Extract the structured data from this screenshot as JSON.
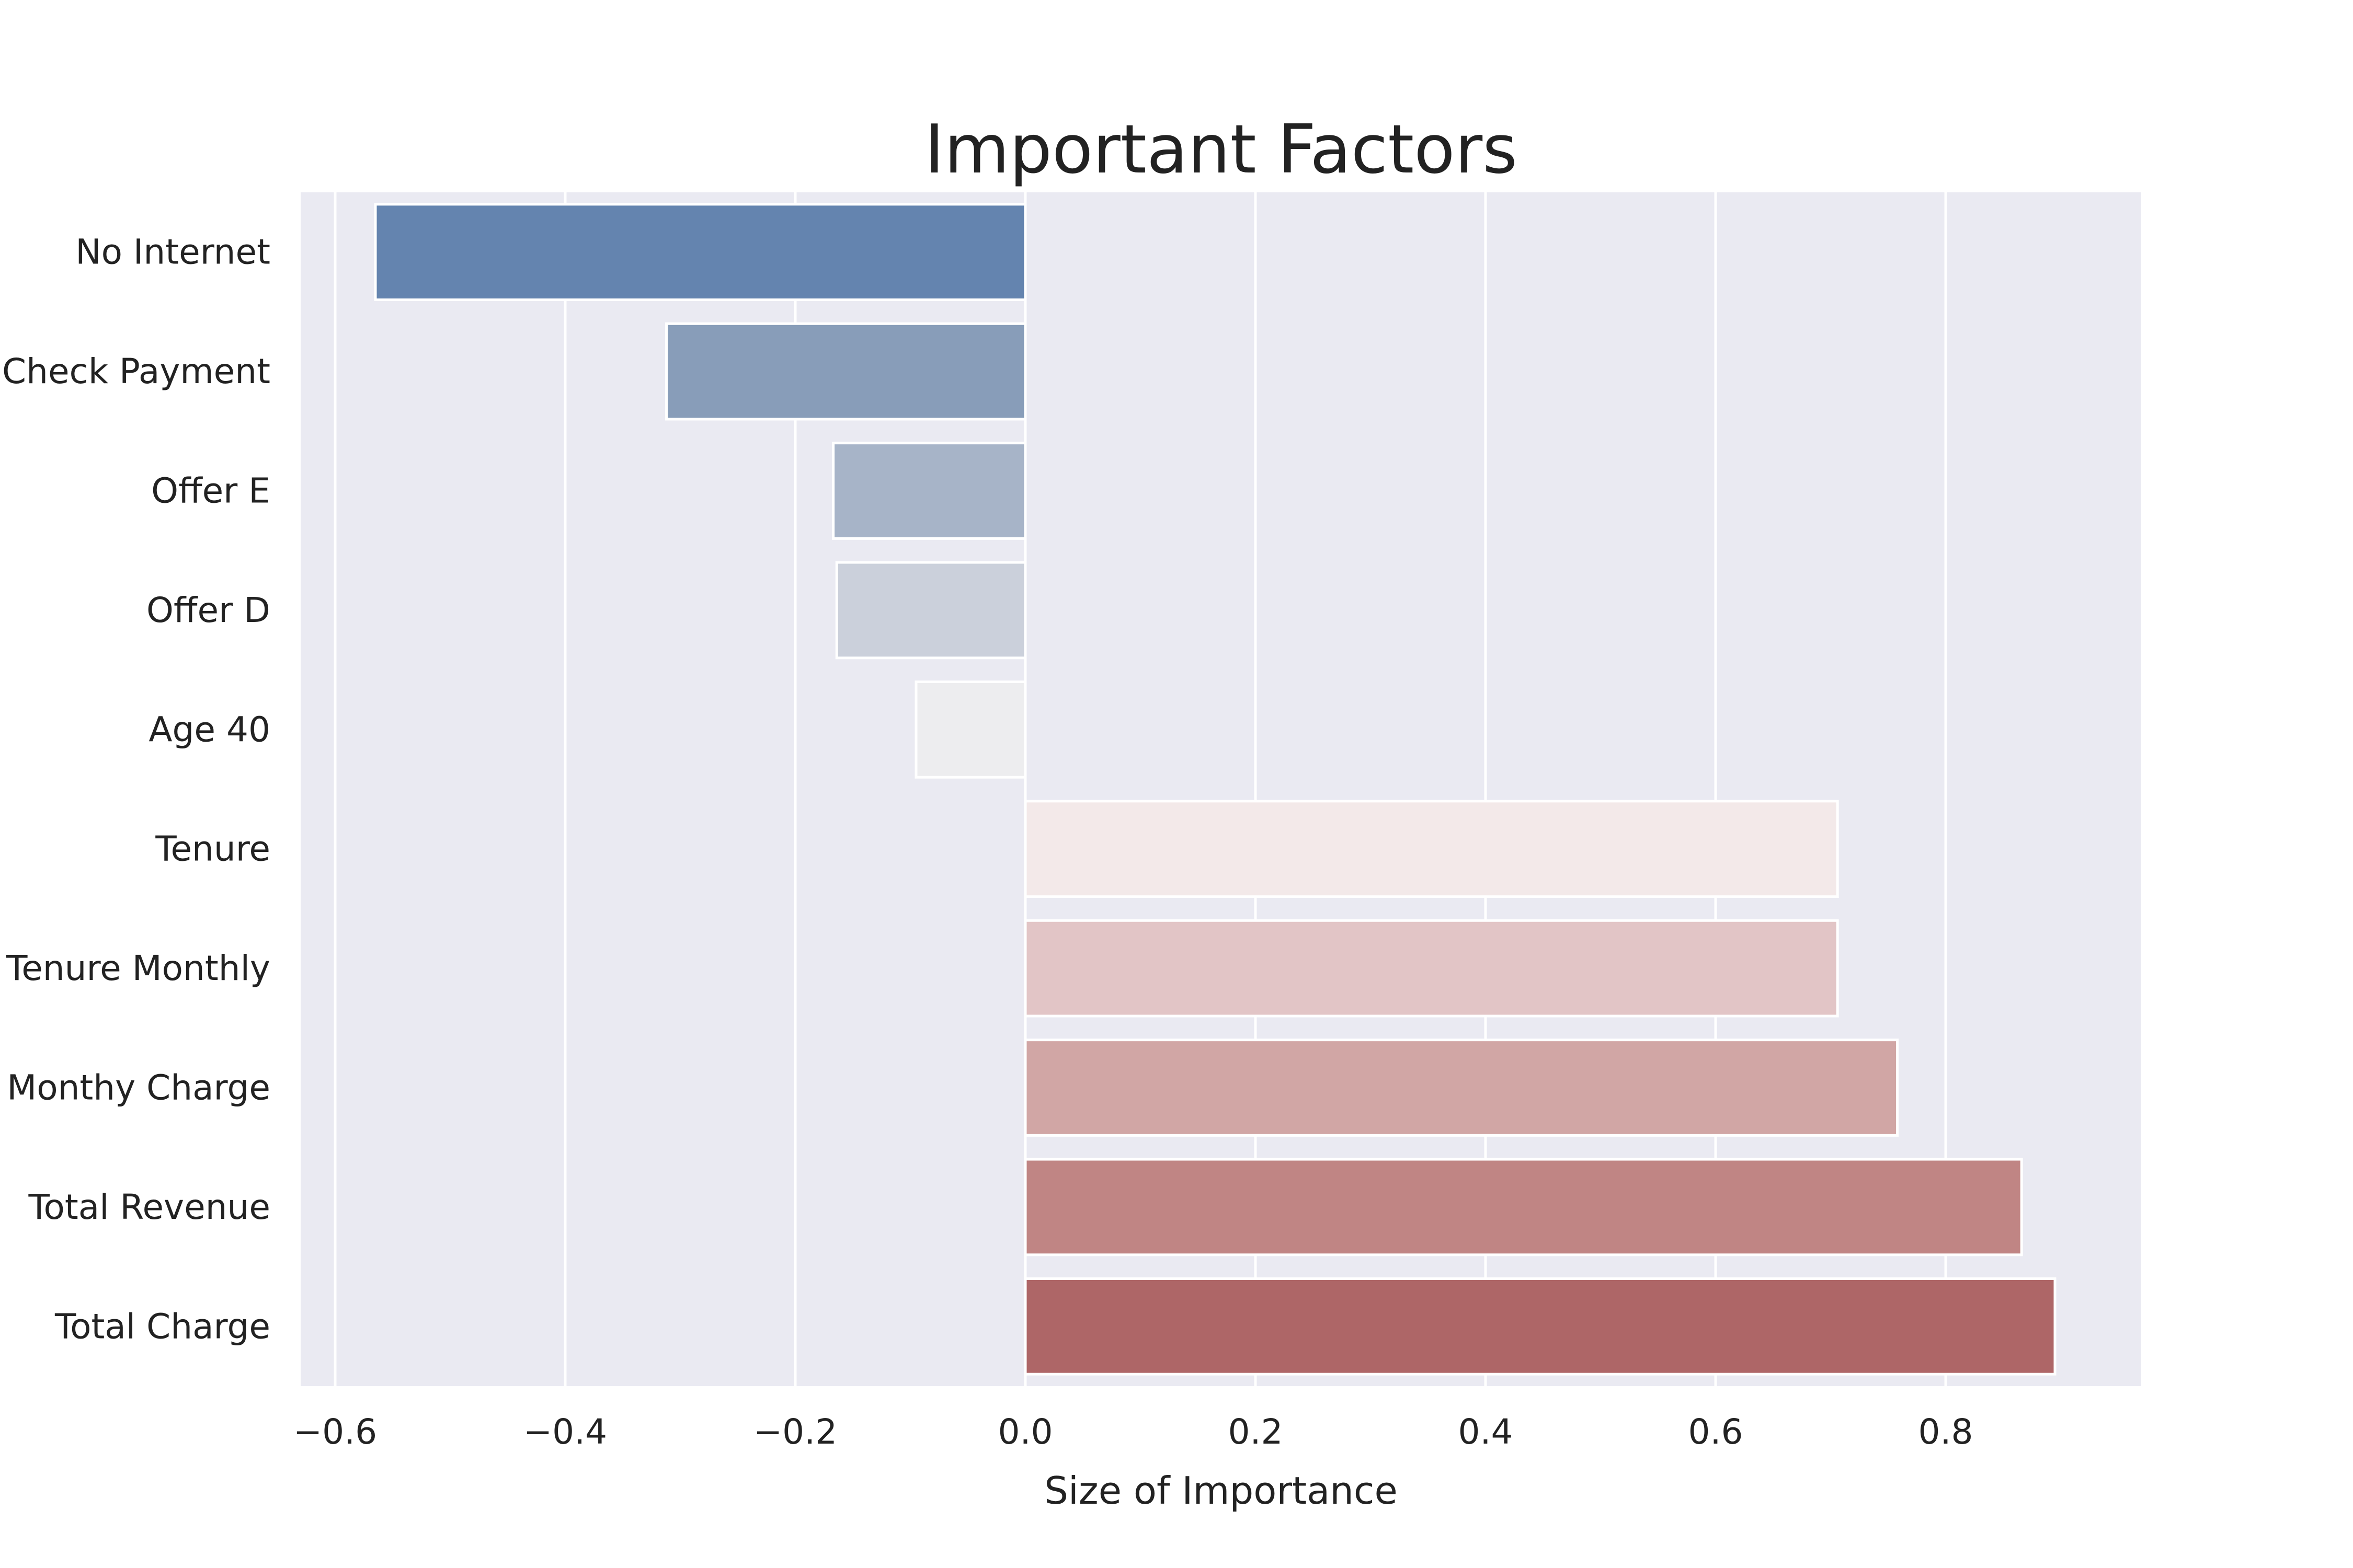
{
  "chart_data": {
    "type": "bar",
    "orientation": "horizontal",
    "title": "Important Factors",
    "xlabel": "Size of Importance",
    "ylabel": "",
    "xlim": [
      -0.63,
      0.97
    ],
    "xticks": [
      -0.6,
      -0.4,
      -0.2,
      0.0,
      0.2,
      0.4,
      0.6,
      0.8
    ],
    "xtick_labels": [
      "−0.6",
      "−0.4",
      "−0.2",
      "0.0",
      "0.2",
      "0.4",
      "0.6",
      "0.8"
    ],
    "categories": [
      "No Internet",
      "Mailed Check Payment",
      "Offer E",
      "Offer D",
      "Age 40",
      "Tenure",
      "Tenure Monthly",
      "Monthy Charge",
      "Total Revenue",
      "Total Charge"
    ],
    "values": [
      -0.565,
      -0.312,
      -0.167,
      -0.164,
      -0.095,
      0.706,
      0.706,
      0.758,
      0.866,
      0.895
    ],
    "colors": [
      "#6484af",
      "#889db9",
      "#a7b4c8",
      "#cbd0db",
      "#ededef",
      "#f3e9e9",
      "#e2c5c6",
      "#d1a6a5",
      "#c08584",
      "#ae6667"
    ],
    "grid": true,
    "background": "#eaeaf2",
    "grid_color": "#ffffff"
  }
}
